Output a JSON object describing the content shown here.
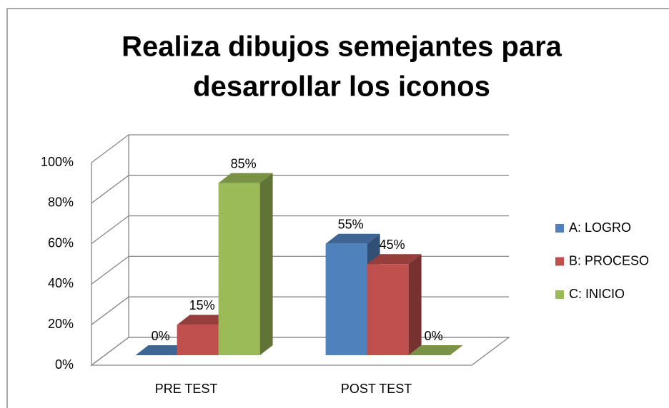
{
  "chart_data": {
    "type": "bar3d",
    "title": [
      "Realiza dibujos semejantes para",
      "desarrollar los iconos"
    ],
    "categories": [
      "PRE TEST",
      "POST TEST"
    ],
    "series": [
      {
        "name": "A: LOGRO",
        "color": "#4f81bd",
        "values": [
          0,
          55
        ],
        "value_labels": [
          "0%",
          "55%"
        ]
      },
      {
        "name": "B: PROCESO",
        "color": "#c0504d",
        "values": [
          15,
          45
        ],
        "value_labels": [
          "15%",
          "45%"
        ]
      },
      {
        "name": "C: INICIO",
        "color": "#9bbb59",
        "values": [
          85,
          0
        ],
        "value_labels": [
          "85%",
          "0%"
        ]
      }
    ],
    "ylim": [
      0,
      100
    ],
    "yticks": [
      {
        "value": 0,
        "label": "0%"
      },
      {
        "value": 20,
        "label": "20%"
      },
      {
        "value": 40,
        "label": "40%"
      },
      {
        "value": 60,
        "label": "60%"
      },
      {
        "value": 80,
        "label": "80%"
      },
      {
        "value": 100,
        "label": "100%"
      }
    ],
    "grid": true,
    "legend": "right"
  }
}
